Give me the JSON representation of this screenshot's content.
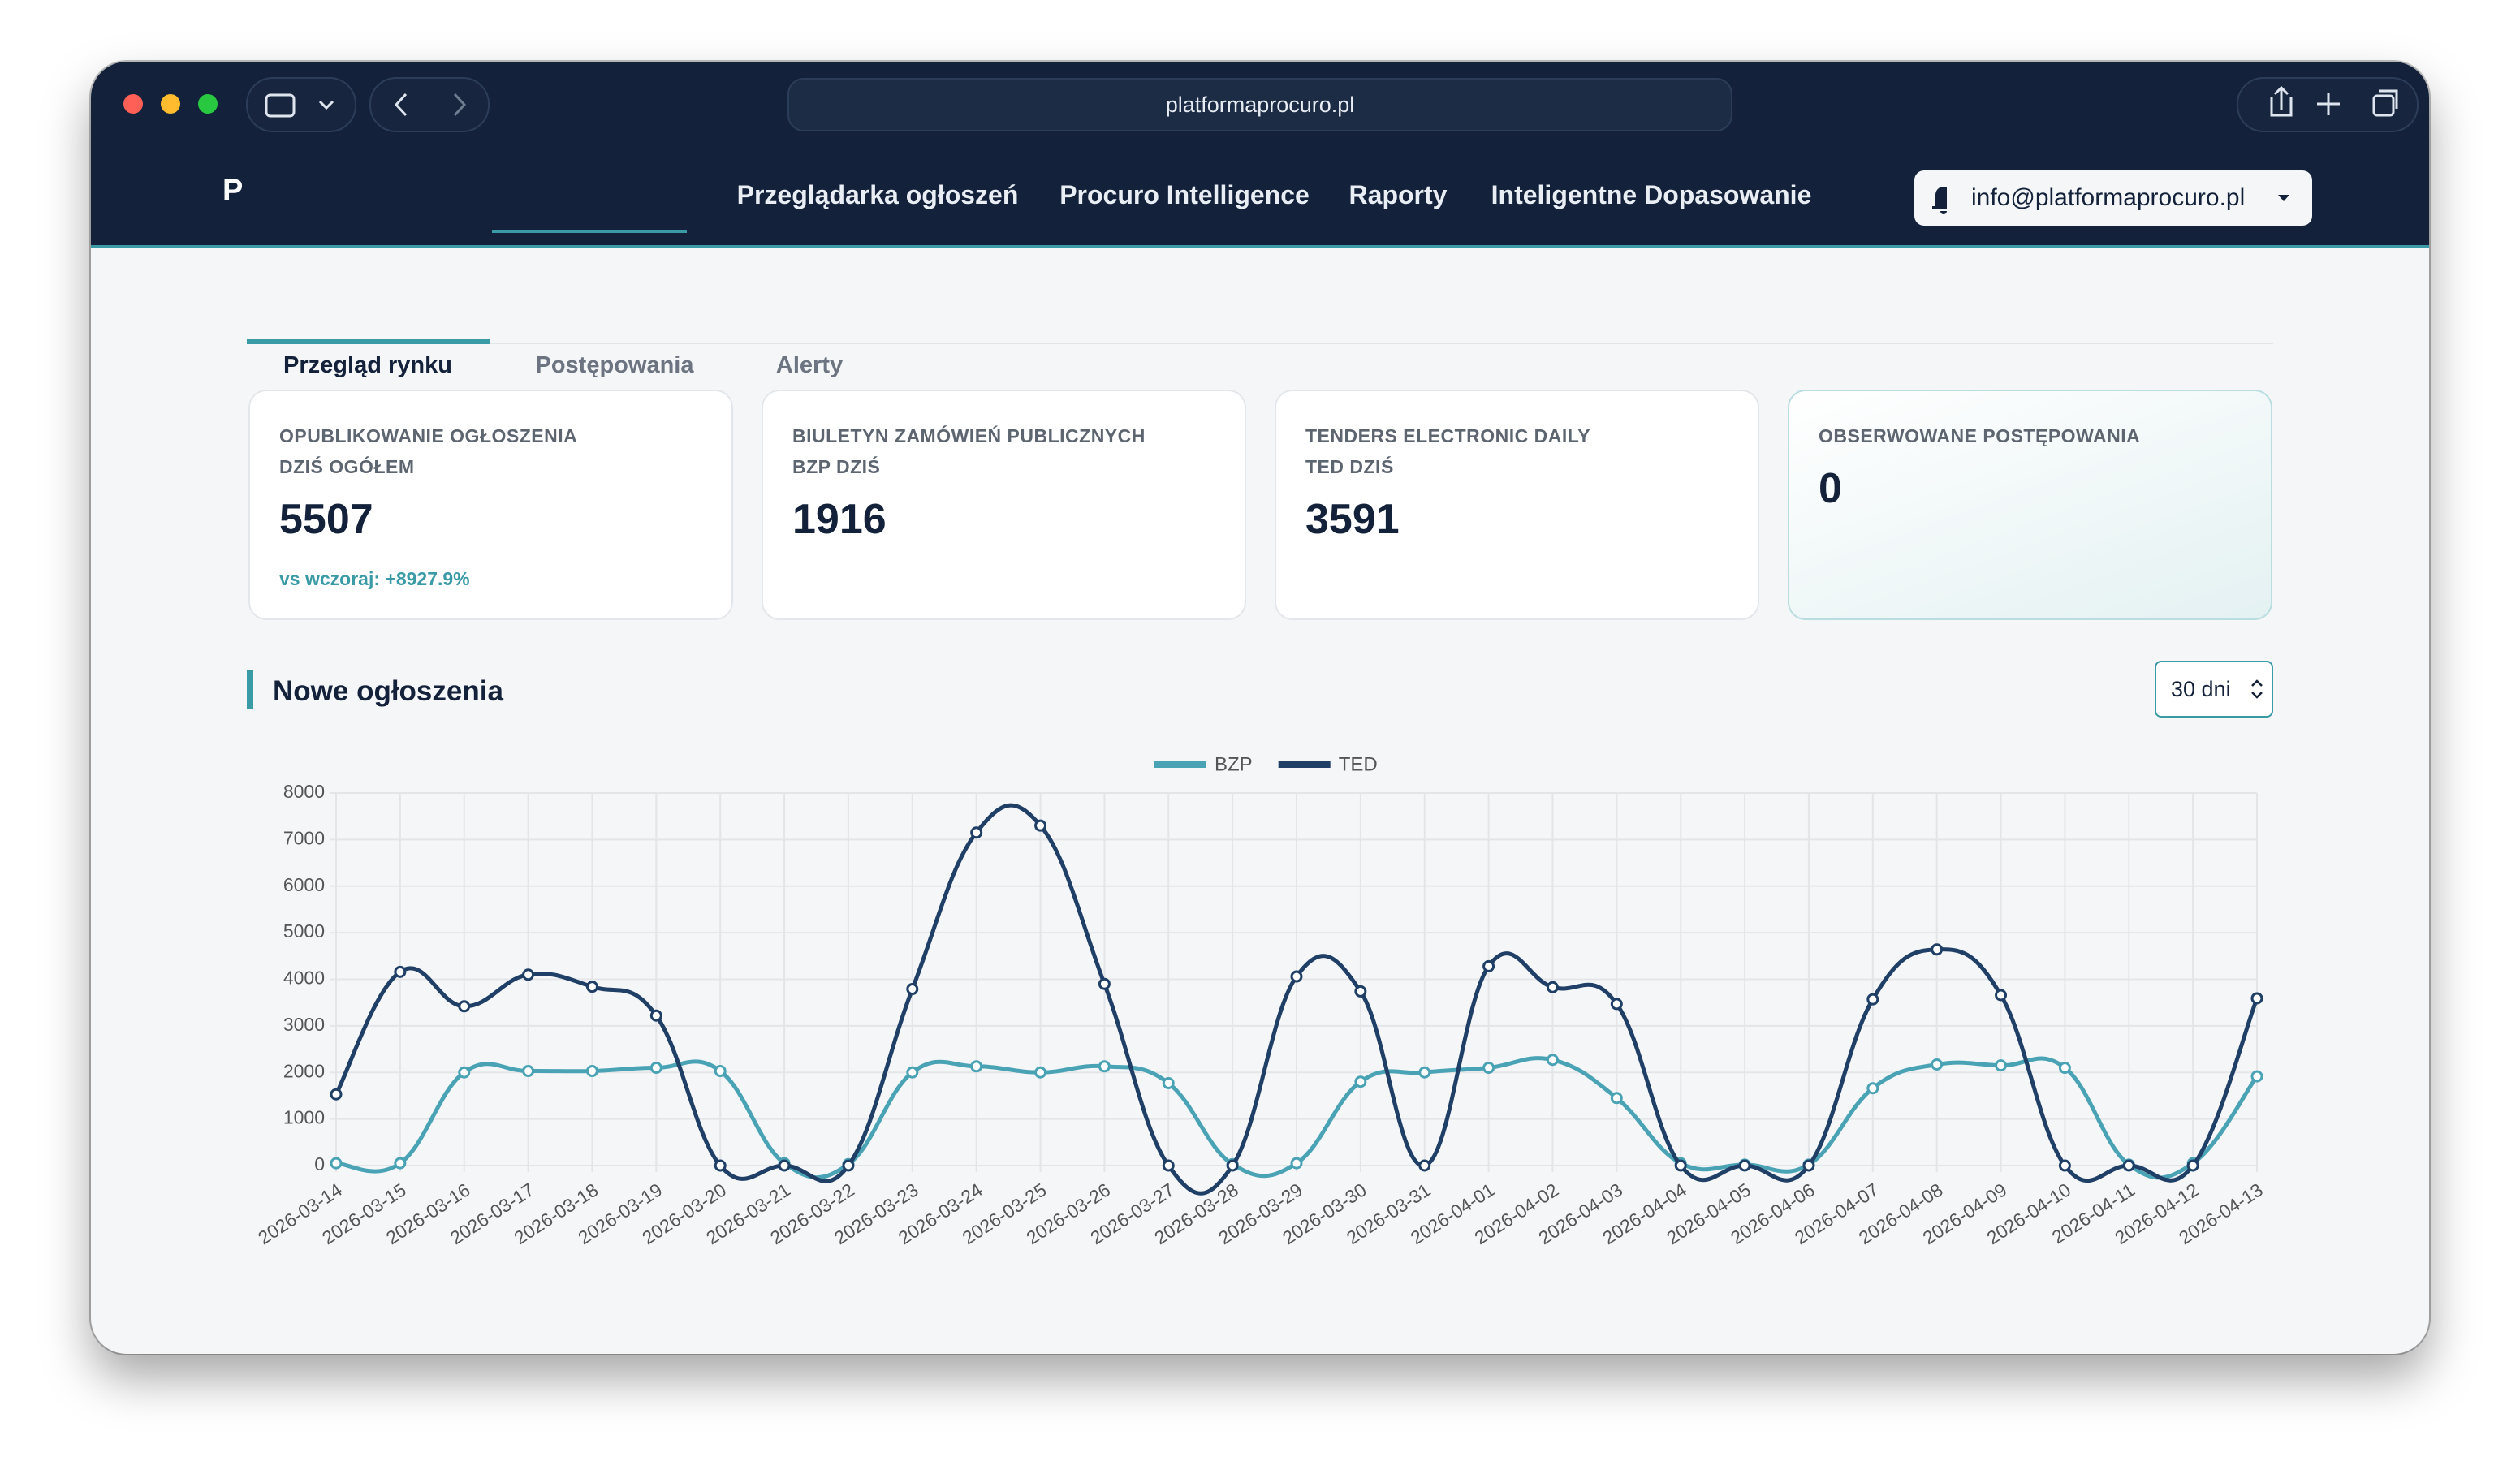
{
  "browser": {
    "url": "platformaprocuro.pl"
  },
  "nav": {
    "logo": "P",
    "items": [
      "Przeglądarka ogłoszeń",
      "Procuro Intelligence",
      "Raporty",
      "Inteligentne Dopasowanie"
    ],
    "account": "info@platformaprocuro.pl"
  },
  "tabs": [
    "Przegląd rynku",
    "Postępowania",
    "Alerty"
  ],
  "cards": [
    {
      "label": [
        "OPUBLIKOWANIE OGŁOSZENIA",
        "DZIŚ OGÓŁEM"
      ],
      "value": 5507,
      "change": "vs wczoraj: +8927.9%"
    },
    {
      "label": [
        "BIULETYN ZAMÓWIEŃ PUBLICZNYCH",
        "BZP DZIŚ"
      ],
      "value": 1916
    },
    {
      "label": [
        "TENDERS ELECTRONIC DAILY",
        "TED DZIŚ"
      ],
      "value": 3591
    },
    {
      "label": [
        "OBSERWOWANE POSTĘPOWANIA"
      ],
      "value": 0
    }
  ],
  "section": {
    "title": "Nowe ogłoszenia",
    "range": "30 dni"
  },
  "chart_data": {
    "type": "line",
    "categories": [
      "2026-03-14",
      "2026-03-15",
      "2026-03-16",
      "2026-03-17",
      "2026-03-18",
      "2026-03-19",
      "2026-03-20",
      "2026-03-21",
      "2026-03-22",
      "2026-03-23",
      "2026-03-24",
      "2026-03-25",
      "2026-03-26",
      "2026-03-27",
      "2026-03-28",
      "2026-03-29",
      "2026-03-30",
      "2026-03-31",
      "2026-04-01",
      "2026-04-02",
      "2026-04-03",
      "2026-04-04",
      "2026-04-05",
      "2026-04-06",
      "2026-04-07",
      "2026-04-08",
      "2026-04-09",
      "2026-04-10",
      "2026-04-11",
      "2026-04-12",
      "2026-04-13"
    ],
    "series": [
      {
        "name": "BZP",
        "color": "#4aa3b5",
        "values": [
          50,
          50,
          2000,
          2030,
          2030,
          2100,
          2030,
          50,
          30,
          2000,
          2130,
          2000,
          2130,
          1770,
          30,
          50,
          1800,
          2000,
          2100,
          2270,
          1450,
          50,
          20,
          20,
          1660,
          2170,
          2150,
          2100,
          20,
          50,
          1916
        ]
      },
      {
        "name": "TED",
        "color": "#1f3f66",
        "values": [
          1530,
          4160,
          3420,
          4100,
          3840,
          3220,
          0,
          0,
          0,
          3790,
          7150,
          7300,
          3900,
          0,
          0,
          4060,
          3740,
          0,
          4280,
          3830,
          3470,
          0,
          0,
          0,
          3570,
          4640,
          3660,
          0,
          0,
          0,
          3591
        ]
      }
    ],
    "ylim": [
      0,
      8000
    ],
    "yticks": [
      0,
      1000,
      2000,
      3000,
      4000,
      5000,
      6000,
      7000,
      8000
    ],
    "grid": true,
    "legend": "top"
  }
}
